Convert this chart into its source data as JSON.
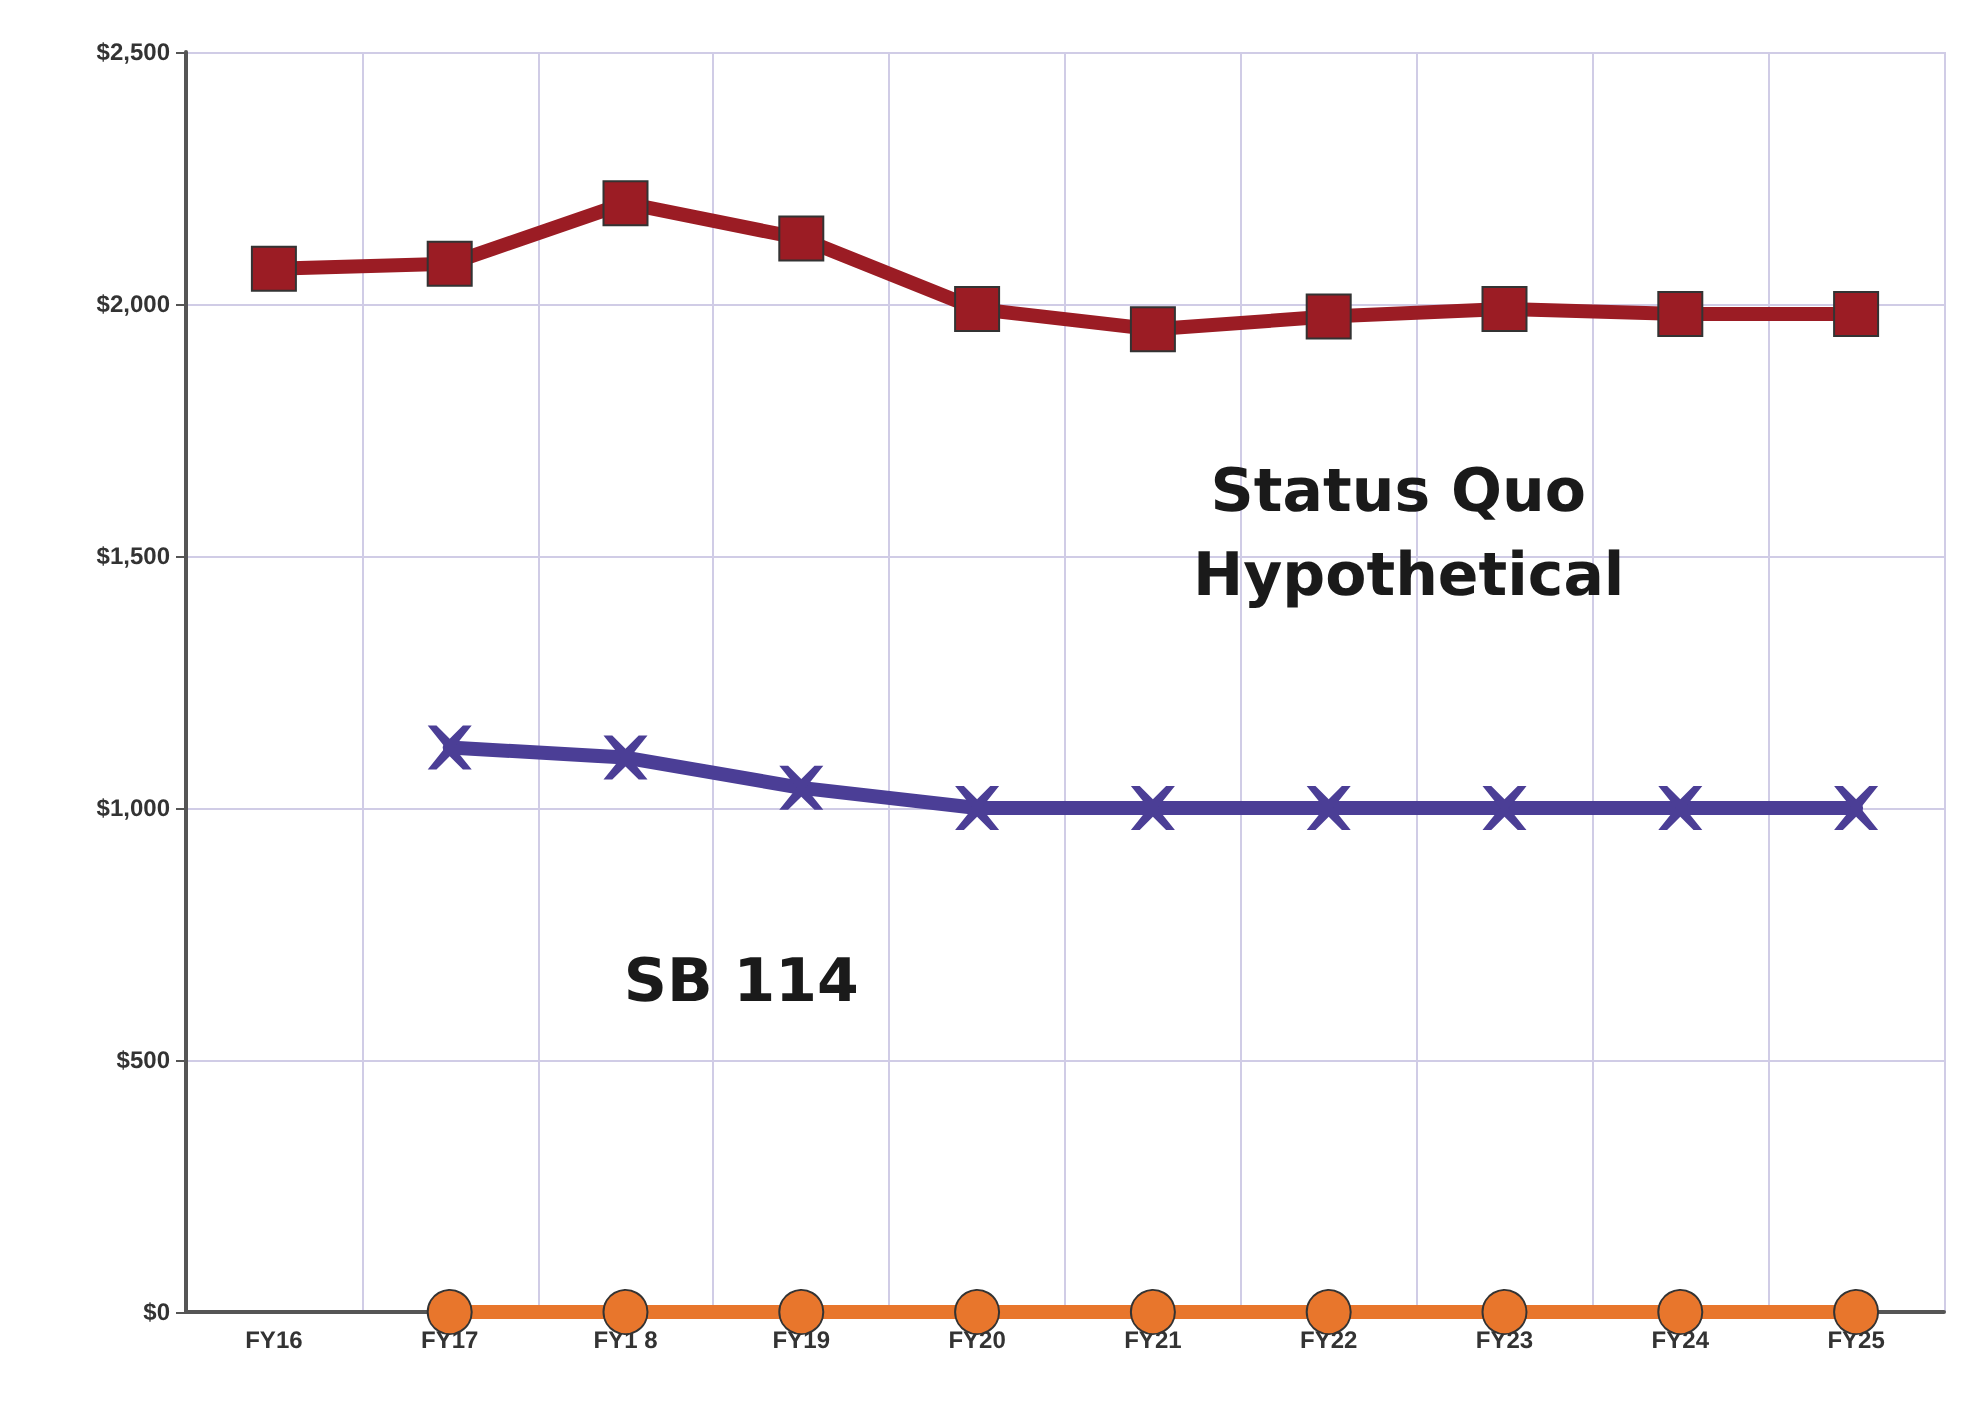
{
  "chart_data": {
    "type": "line",
    "categories": [
      "FY16",
      "FY17",
      "FY1 8",
      "FY19",
      "FY20",
      "FY21",
      "FY22",
      "FY23",
      "FY24",
      "FY25"
    ],
    "series": [
      {
        "name": "Status Quo Hypothetical",
        "color": "#9b1c24",
        "marker": "square",
        "values": [
          2070,
          2080,
          2200,
          2130,
          1990,
          1950,
          1975,
          1990,
          1980,
          1980
        ]
      },
      {
        "name": "SB 114",
        "color": "#4b3e96",
        "marker": "cross",
        "values": [
          null,
          1120,
          1100,
          1040,
          1000,
          1000,
          1000,
          1000,
          1000,
          1000
        ]
      },
      {
        "color": "#e8762c",
        "marker": "circle",
        "values": [
          null,
          0,
          0,
          0,
          0,
          0,
          0,
          0,
          0,
          0
        ]
      }
    ],
    "ylim": [
      0,
      2500
    ],
    "yticks": [
      {
        "value": 0,
        "label": "$0"
      },
      {
        "value": 500,
        "label": "$500"
      },
      {
        "value": 1000,
        "label": "$1,000"
      },
      {
        "value": 1500,
        "label": "$1,500"
      },
      {
        "value": 2000,
        "label": "$2,000"
      },
      {
        "value": 2500,
        "label": "$2,500"
      }
    ],
    "grid": true,
    "legend": false
  }
}
